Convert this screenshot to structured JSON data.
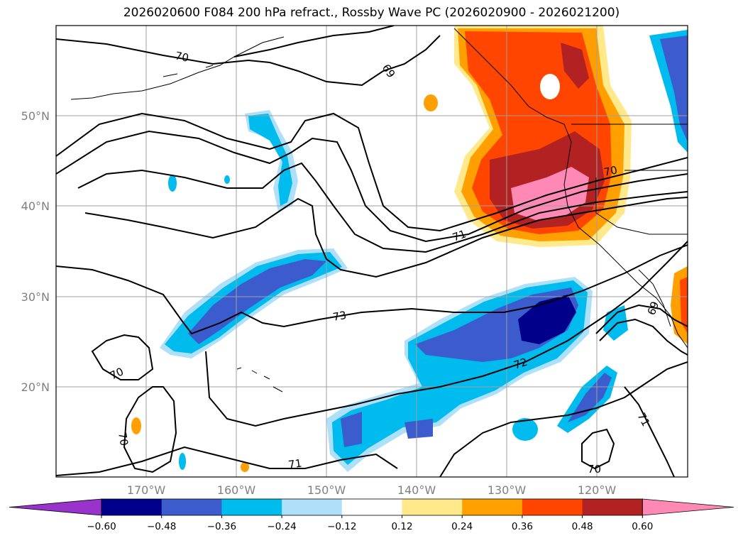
{
  "title": "2026020600 F084 200 hPa refract., Rossby Wave PC (2026020900 - 2026021200)",
  "lat_labels": [
    "50°N",
    "40°N",
    "30°N",
    "20°N"
  ],
  "lon_labels": [
    "170°W",
    "160°W",
    "150°W",
    "140°W",
    "130°W",
    "120°W"
  ],
  "colorbar": {
    "labels": [
      "−0.60",
      "−0.48",
      "−0.36",
      "−0.24",
      "−0.12",
      "0.12",
      "0.24",
      "0.36",
      "0.48",
      "0.60"
    ],
    "colors": [
      "#9933cc",
      "#00008b",
      "#3c5bcc",
      "#00bbee",
      "#aee0fa",
      "#ffffff",
      "#ffe98a",
      "#ffa000",
      "#ff4500",
      "#b22222",
      "#ff88b4"
    ]
  },
  "contour_labels": [
    "70",
    "69",
    "70",
    "71",
    "73",
    "72",
    "70",
    "70",
    "71",
    "71",
    "70",
    "69"
  ]
}
